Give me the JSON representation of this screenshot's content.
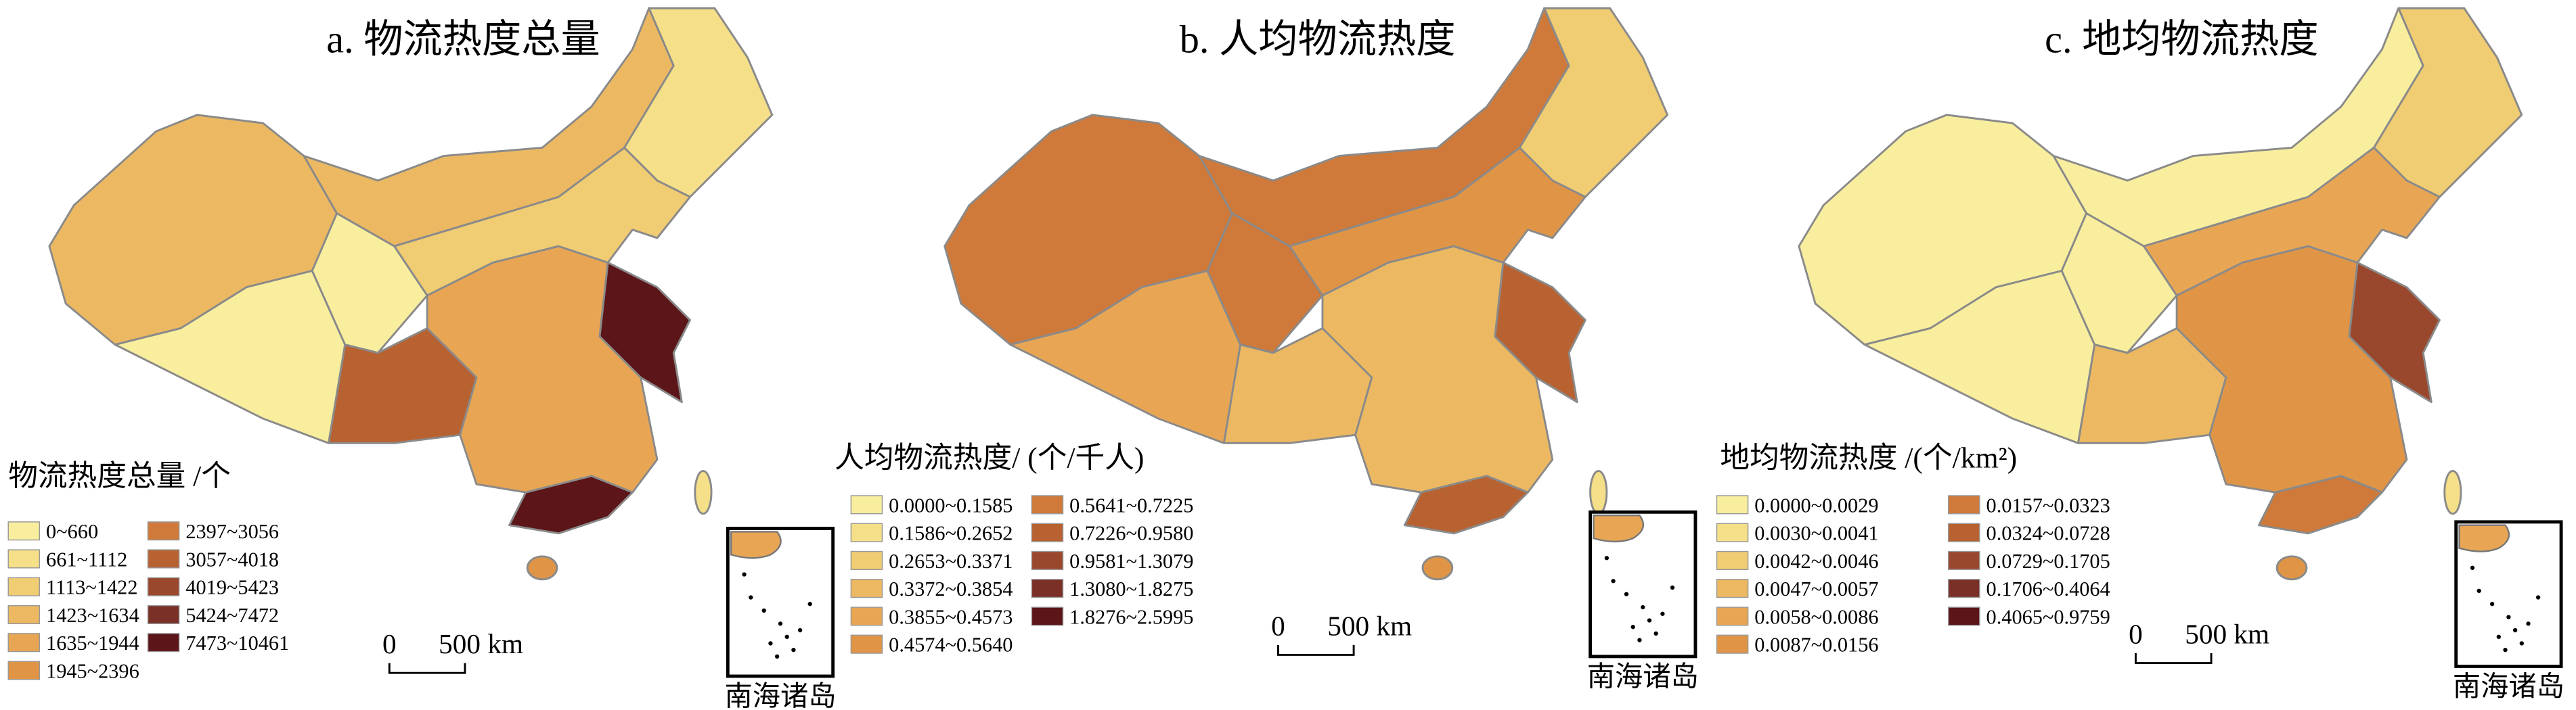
{
  "panels": [
    {
      "title": "a. 物流热度总量",
      "legend_title": "物流热度总量 /个",
      "legend_items": [
        "0~660",
        "661~1112",
        "1113~1422",
        "1423~1634",
        "1635~1944",
        "1945~2396",
        "2397~3056",
        "3057~4018",
        "4019~5423",
        "5424~7472",
        "7473~10461"
      ],
      "scale_zero": "0",
      "scale_label": "500 km",
      "inset_label": "南海诸岛"
    },
    {
      "title": "b. 人均物流热度",
      "legend_title": "人均物流热度/ (个/千人)",
      "legend_items": [
        "0.0000~0.1585",
        "0.1586~0.2652",
        "0.2653~0.3371",
        "0.3372~0.3854",
        "0.3855~0.4573",
        "0.4574~0.5640",
        "0.5641~0.7225",
        "0.7226~0.9580",
        "0.9581~1.3079",
        "1.3080~1.8275",
        "1.8276~2.5995"
      ],
      "scale_zero": "0",
      "scale_label": "500 km",
      "inset_label": "南海诸岛"
    },
    {
      "title": "c. 地均物流热度",
      "legend_title": "地均物流热度 /(个/km²)",
      "legend_items": [
        "0.0000~0.0029",
        "0.0030~0.0041",
        "0.0042~0.0046",
        "0.0047~0.0057",
        "0.0058~0.0086",
        "0.0087~0.0156",
        "0.0157~0.0323",
        "0.0324~0.0728",
        "0.0729~0.1705",
        "0.1706~0.4064",
        "0.4065~0.9759"
      ],
      "scale_zero": "0",
      "scale_label": "500 km",
      "inset_label": "南海诸岛"
    }
  ],
  "legend_colors": [
    "#f8ee9e",
    "#f5df88",
    "#f0cc72",
    "#ecb962",
    "#e8a655",
    "#e09546",
    "#cf7a3a",
    "#b86232",
    "#9a482d",
    "#7a3026",
    "#5c1518"
  ]
}
